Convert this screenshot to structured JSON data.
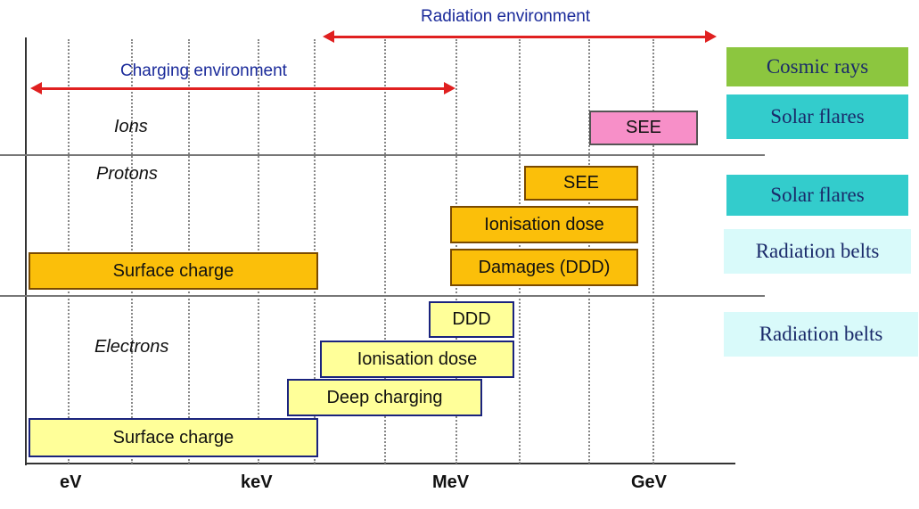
{
  "colors": {
    "arrow": "#e02020",
    "arrow_label": "#1a2a9a",
    "orange_box": "#fbbf0a",
    "yellow_box": "#ffff99",
    "pink_box": "#f78fc8",
    "cosmic_rays": "#8cc63f",
    "solar_flares": "#33cccc",
    "radiation_belts": "#d9fafa"
  },
  "environments": {
    "radiation": "Radiation environment",
    "charging": "Charging environment"
  },
  "particles": {
    "ions": "Ions",
    "protons": "Protons",
    "electrons": "Electrons"
  },
  "effects": {
    "ions_see": "SEE",
    "protons_see": "SEE",
    "protons_ionisation": "Ionisation dose",
    "protons_damages": "Damages (DDD)",
    "protons_surface": "Surface charge",
    "electrons_ddd": "DDD",
    "electrons_ionisation": "Ionisation dose",
    "electrons_deep": "Deep charging",
    "electrons_surface": "Surface charge"
  },
  "sources": {
    "cosmic_rays": "Cosmic rays",
    "solar_flares_1": "Solar flares",
    "solar_flares_2": "Solar flares",
    "radiation_belts_1": "Radiation belts",
    "radiation_belts_2": "Radiation belts"
  },
  "axis": {
    "ticks": [
      "eV",
      "keV",
      "MeV",
      "GeV"
    ]
  }
}
